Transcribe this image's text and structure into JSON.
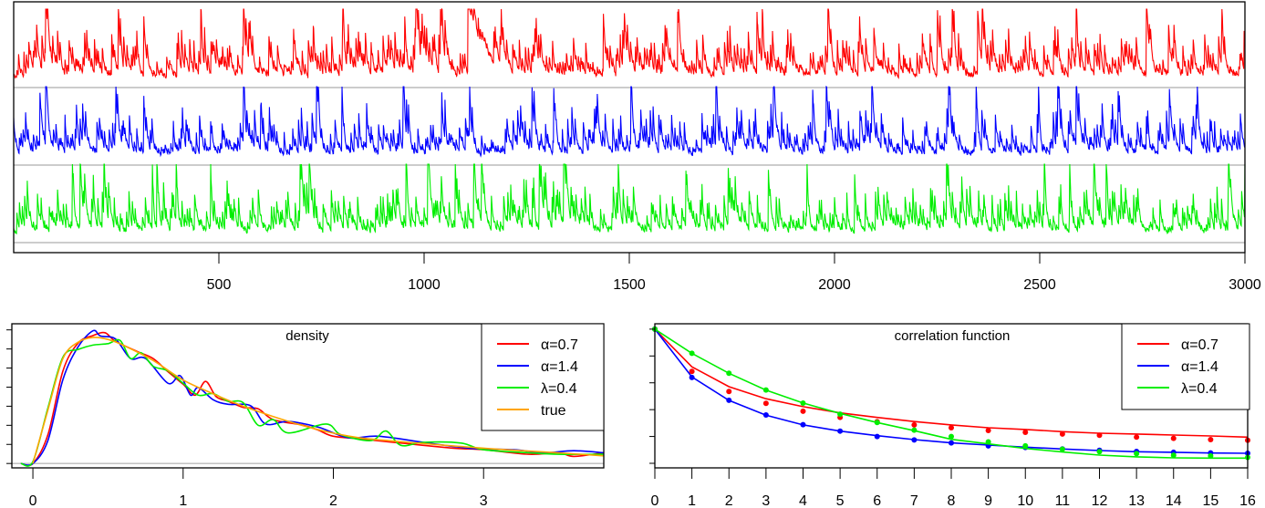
{
  "chart_data": [
    {
      "type": "line",
      "title": "",
      "xlim": [
        0,
        3000
      ],
      "x_ticks": [
        500,
        1000,
        1500,
        2000,
        2500,
        3000
      ],
      "x_tick_labels": [
        "500",
        "1000",
        "1500",
        "2000",
        "2500",
        "3000"
      ],
      "y_axis": "none",
      "layout": "three stacked panels sharing the x axis",
      "series": [
        {
          "color": "#ff0000",
          "peaks": [
            [
              78,
              1.0
            ],
            [
              255,
              1.0
            ],
            [
              317,
              0.75
            ],
            [
              456,
              0.72
            ],
            [
              560,
              1.0
            ],
            [
              730,
              0.55
            ],
            [
              802,
              0.85
            ],
            [
              953,
              0.65
            ],
            [
              980,
              0.78
            ],
            [
              1040,
              0.78
            ],
            [
              1107,
              0.9
            ],
            [
              1437,
              0.8
            ],
            [
              1618,
              0.8
            ],
            [
              1811,
              0.85
            ],
            [
              1824,
              0.8
            ],
            [
              1984,
              1.0
            ],
            [
              2096,
              0.6
            ],
            [
              2251,
              0.7
            ],
            [
              2287,
              0.85
            ],
            [
              2349,
              0.87
            ],
            [
              2360,
              0.8
            ],
            [
              2589,
              0.78
            ],
            [
              2760,
              0.68
            ],
            [
              2814,
              0.67
            ],
            [
              2944,
              0.6
            ],
            [
              2998,
              0.35
            ]
          ]
        },
        {
          "color": "#0000ff",
          "peaks": [
            [
              64,
              0.75
            ],
            [
              78,
              1.0
            ],
            [
              249,
              0.72
            ],
            [
              317,
              0.77
            ],
            [
              560,
              1.0
            ],
            [
              602,
              0.6
            ],
            [
              738,
              1.0
            ],
            [
              800,
              0.75
            ],
            [
              860,
              0.6
            ],
            [
              949,
              1.0
            ],
            [
              1043,
              0.68
            ],
            [
              1111,
              0.7
            ],
            [
              1263,
              0.82
            ],
            [
              1316,
              0.77
            ],
            [
              1504,
              1.0
            ],
            [
              1711,
              0.92
            ],
            [
              1851,
              0.73
            ],
            [
              1947,
              0.78
            ],
            [
              1980,
              1.0
            ],
            [
              2091,
              0.92
            ],
            [
              2278,
              1.0
            ],
            [
              2345,
              0.95
            ],
            [
              2497,
              0.75
            ],
            [
              2544,
              1.0
            ],
            [
              2589,
              1.0
            ],
            [
              2691,
              0.68
            ],
            [
              2816,
              0.75
            ]
          ]
        },
        {
          "color": "#00ee00",
          "peaks": [
            [
              143,
              0.95
            ],
            [
              162,
              1.0
            ],
            [
              220,
              0.75
            ],
            [
              338,
              0.85
            ],
            [
              349,
              1.0
            ],
            [
              396,
              0.86
            ],
            [
              480,
              0.87
            ],
            [
              698,
              0.82
            ],
            [
              720,
              0.83
            ],
            [
              956,
              0.85
            ],
            [
              1009,
              1.0
            ],
            [
              1076,
              1.0
            ],
            [
              1121,
              1.0
            ],
            [
              1140,
              1.0
            ],
            [
              1281,
              0.83
            ],
            [
              1340,
              0.96
            ],
            [
              1473,
              0.77
            ],
            [
              1638,
              0.73
            ],
            [
              1741,
              0.77
            ],
            [
              1839,
              0.73
            ],
            [
              1933,
              0.77
            ],
            [
              2049,
              0.73
            ],
            [
              2273,
              0.88
            ],
            [
              2511,
              0.77
            ],
            [
              2573,
              0.88
            ],
            [
              2632,
              0.77
            ],
            [
              2662,
              1.0
            ],
            [
              2960,
              0.8
            ],
            [
              3000,
              0.85
            ]
          ]
        }
      ]
    },
    {
      "type": "line",
      "title": "density",
      "xlim": [
        -0.14,
        3.8
      ],
      "ylim": [
        -0.023,
        0.732
      ],
      "x_ticks": [
        0,
        1,
        2,
        3
      ],
      "x_tick_labels": [
        "0",
        "1",
        "2",
        "3"
      ],
      "y_ticks": [
        0,
        0.1,
        0.2,
        0.3,
        0.4,
        0.5,
        0.6,
        0.7
      ],
      "y_tick_labels_shown": false,
      "legend": {
        "position": "top-right",
        "entries": [
          {
            "label": "α=0.7",
            "color": "#ff0000"
          },
          {
            "label": "α=1.4",
            "color": "#0000ff"
          },
          {
            "label": "λ=0.4",
            "color": "#00ee00"
          },
          {
            "label": "true",
            "color": "#ffa500"
          }
        ]
      },
      "series": [
        {
          "name": "α=0.7",
          "color": "#ff0000",
          "x": [
            -0.08,
            0,
            0.1,
            0.2,
            0.3,
            0.4,
            0.48,
            0.55,
            0.7,
            0.8,
            0.9,
            1.0,
            1.08,
            1.15,
            1.22,
            1.3,
            1.4,
            1.5,
            1.6,
            1.8,
            1.9,
            2.0,
            2.2,
            2.5,
            2.8,
            3.0,
            3.3,
            3.5,
            3.6,
            3.8
          ],
          "y": [
            0,
            0,
            0.15,
            0.485,
            0.63,
            0.67,
            0.685,
            0.64,
            0.585,
            0.55,
            0.48,
            0.415,
            0.358,
            0.43,
            0.35,
            0.326,
            0.294,
            0.286,
            0.23,
            0.2,
            0.175,
            0.143,
            0.127,
            0.103,
            0.08,
            0.072,
            0.048,
            0.056,
            0.037,
            0.056
          ]
        },
        {
          "name": "α=1.4",
          "color": "#0000ff",
          "x": [
            -0.08,
            0,
            0.1,
            0.2,
            0.3,
            0.4,
            0.45,
            0.55,
            0.65,
            0.75,
            0.9,
            0.98,
            1.05,
            1.1,
            1.2,
            1.3,
            1.45,
            1.55,
            1.7,
            1.9,
            2.1,
            2.3,
            2.6,
            2.9,
            3.2,
            3.4,
            3.6,
            3.8
          ],
          "y": [
            0,
            0,
            0.12,
            0.44,
            0.61,
            0.695,
            0.668,
            0.652,
            0.55,
            0.55,
            0.42,
            0.46,
            0.358,
            0.398,
            0.334,
            0.31,
            0.302,
            0.207,
            0.22,
            0.19,
            0.135,
            0.143,
            0.111,
            0.08,
            0.072,
            0.056,
            0.067,
            0.056
          ]
        },
        {
          "name": "λ=0.4",
          "color": "#00ee00",
          "x": [
            -0.08,
            0,
            0.1,
            0.2,
            0.3,
            0.4,
            0.5,
            0.58,
            0.65,
            0.72,
            0.8,
            0.9,
            1.0,
            1.1,
            1.2,
            1.3,
            1.4,
            1.5,
            1.6,
            1.7,
            1.95,
            2.05,
            2.25,
            2.35,
            2.45,
            2.6,
            2.85,
            3.0,
            3.3,
            3.5,
            3.8
          ],
          "y": [
            0,
            0.01,
            0.29,
            0.557,
            0.597,
            0.62,
            0.628,
            0.645,
            0.55,
            0.58,
            0.51,
            0.485,
            0.42,
            0.358,
            0.366,
            0.326,
            0.318,
            0.2,
            0.23,
            0.16,
            0.207,
            0.151,
            0.12,
            0.17,
            0.095,
            0.111,
            0.107,
            0.072,
            0.056,
            0.048,
            0.048
          ]
        },
        {
          "name": "true",
          "color": "#ffa500",
          "x": [
            0,
            0.1,
            0.2,
            0.3,
            0.4,
            0.5,
            0.6,
            0.8,
            1.0,
            1.2,
            1.4,
            1.6,
            1.8,
            2.0,
            2.2,
            2.5,
            3.0,
            3.5,
            3.8
          ],
          "y": [
            0,
            0.28,
            0.55,
            0.635,
            0.66,
            0.65,
            0.62,
            0.54,
            0.437,
            0.365,
            0.3,
            0.246,
            0.198,
            0.159,
            0.132,
            0.111,
            0.08,
            0.056,
            0.04
          ]
        }
      ]
    },
    {
      "type": "line",
      "title": "correlation function",
      "xlim": [
        0,
        16
      ],
      "ylim": [
        -0.034,
        1.04
      ],
      "x_ticks": [
        0,
        1,
        2,
        3,
        4,
        5,
        6,
        7,
        8,
        9,
        10,
        11,
        12,
        13,
        14,
        15,
        16
      ],
      "x_tick_labels": [
        "0",
        "1",
        "2",
        "3",
        "4",
        "5",
        "6",
        "7",
        "8",
        "9",
        "10",
        "11",
        "12",
        "13",
        "14",
        "15",
        "16"
      ],
      "y_ticks": [
        0,
        0.2,
        0.4,
        0.6,
        0.8,
        1.0
      ],
      "y_tick_labels_shown": false,
      "legend": {
        "position": "top-right",
        "entries": [
          {
            "label": "α=0.7",
            "color": "#ff0000"
          },
          {
            "label": "α=1.4",
            "color": "#0000ff"
          },
          {
            "label": "λ=0.4",
            "color": "#00ee00"
          }
        ]
      },
      "lags": [
        0,
        1,
        2,
        3,
        4,
        5,
        6,
        7,
        8,
        9,
        10,
        11,
        12,
        13,
        14,
        15,
        16
      ],
      "series": [
        {
          "name": "α=0.7",
          "color": "#ff0000",
          "line": [
            1,
            0.719,
            0.571,
            0.481,
            0.422,
            0.376,
            0.342,
            0.311,
            0.286,
            0.265,
            0.252,
            0.236,
            0.224,
            0.218,
            0.211,
            0.204,
            0.195
          ],
          "points": [
            1,
            0.685,
            0.535,
            0.447,
            0.388,
            0.342,
            0.31,
            0.286,
            0.265,
            0.245,
            0.231,
            0.218,
            0.209,
            0.195,
            0.186,
            0.177,
            0.172
          ]
        },
        {
          "name": "α=1.4",
          "color": "#0000ff",
          "line": [
            1,
            0.644,
            0.469,
            0.358,
            0.286,
            0.24,
            0.206,
            0.177,
            0.152,
            0.136,
            0.12,
            0.107,
            0.095,
            0.086,
            0.082,
            0.077,
            0.075
          ],
          "points": [
            1,
            0.64,
            0.47,
            0.36,
            0.288,
            0.24,
            0.2,
            0.174,
            0.152,
            0.13,
            0.118,
            0.107,
            0.097,
            0.088,
            0.082,
            0.077,
            0.075
          ]
        },
        {
          "name": "λ=0.4",
          "color": "#00ee00",
          "line": [
            1,
            0.82,
            0.671,
            0.546,
            0.449,
            0.372,
            0.304,
            0.243,
            0.179,
            0.145,
            0.111,
            0.084,
            0.061,
            0.048,
            0.041,
            0.039,
            0.039
          ],
          "points": [
            1,
            0.82,
            0.671,
            0.546,
            0.449,
            0.366,
            0.304,
            0.247,
            0.2,
            0.16,
            0.13,
            0.105,
            0.087,
            0.072,
            0.06,
            0.055,
            0.044
          ]
        }
      ]
    }
  ]
}
